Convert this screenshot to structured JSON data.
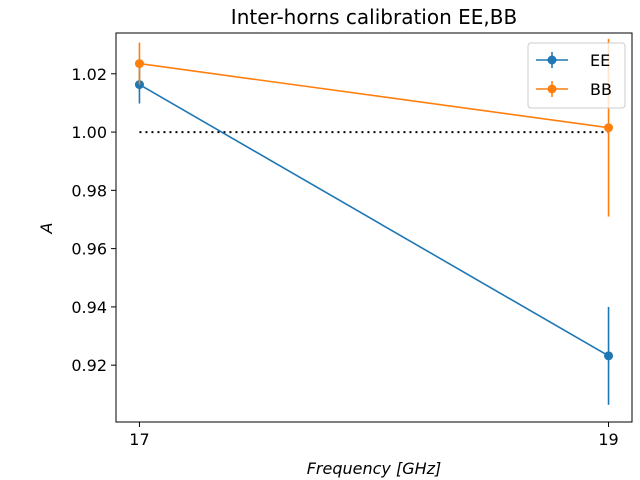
{
  "chart_data": {
    "type": "line",
    "title": "Inter-horns calibration EE,BB",
    "xlabel": "Frequency [GHz]",
    "ylabel": "A",
    "x": [
      17,
      19
    ],
    "xlim": [
      16.9,
      19.1
    ],
    "ylim": [
      0.9005,
      1.034
    ],
    "x_ticks": [
      17,
      19
    ],
    "y_ticks": [
      0.92,
      0.94,
      0.96,
      0.98,
      1.0,
      1.02
    ],
    "y_tick_labels": [
      "0.92",
      "0.94",
      "0.96",
      "0.98",
      "1.00",
      "1.02"
    ],
    "grid": false,
    "legend_position": "top-right",
    "reference_line": {
      "y": 1.0,
      "style": "dotted",
      "color": "#000000"
    },
    "series": [
      {
        "name": "EE",
        "color": "#1f77b4",
        "values": [
          1.0163,
          0.9232
        ],
        "errors": [
          0.0065,
          0.0168
        ]
      },
      {
        "name": "BB",
        "color": "#ff7f0e",
        "values": [
          1.0235,
          1.0015
        ],
        "errors": [
          0.0072,
          0.0305
        ]
      }
    ]
  }
}
